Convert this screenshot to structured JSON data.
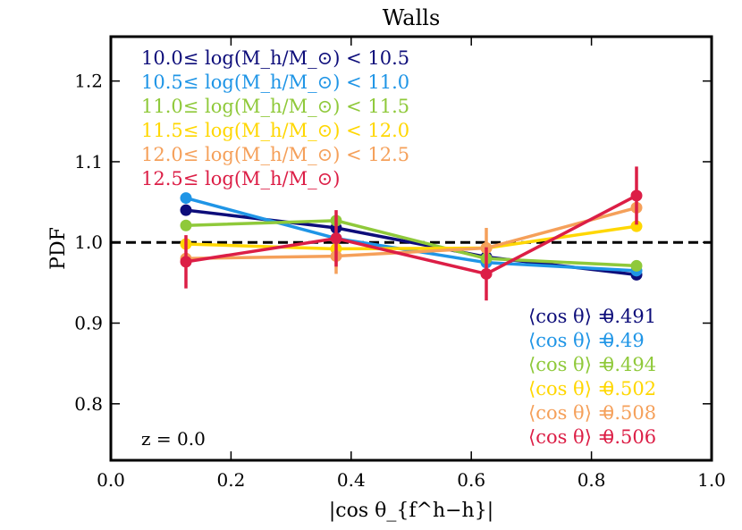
{
  "chart_data": {
    "type": "line",
    "title": "Walls",
    "xlabel": "|cos θ_{f^h−h}|",
    "ylabel": "PDF",
    "xlim": [
      0.0,
      1.0
    ],
    "ylim": [
      0.73,
      1.255
    ],
    "xticks": [
      "0.0",
      "0.2",
      "0.4",
      "0.6",
      "0.8",
      "1.0"
    ],
    "yticks": [
      "0.8",
      "0.9",
      "1.0",
      "1.1",
      "1.2"
    ],
    "x": [
      0.125,
      0.375,
      0.625,
      0.875
    ],
    "reference_line": {
      "y": 1.0,
      "style": "dashed",
      "color": "#000000"
    },
    "series": [
      {
        "name": "10.0≤ log(M_h/M_⊙) < 10.5",
        "color": "#0d0d7a",
        "values": [
          1.04,
          1.018,
          0.982,
          0.96
        ],
        "err": [
          0,
          0,
          0,
          0
        ],
        "mean_cos": "0.491"
      },
      {
        "name": "10.5≤ log(M_h/M_⊙) < 11.0",
        "color": "#1f95e6",
        "values": [
          1.055,
          1.005,
          0.975,
          0.965
        ],
        "err": [
          0,
          0,
          0,
          0
        ],
        "mean_cos": "0.49"
      },
      {
        "name": "11.0≤ log(M_h/M_⊙) < 11.5",
        "color": "#8fc93a",
        "values": [
          1.021,
          1.027,
          0.98,
          0.971
        ],
        "err": [
          0,
          0,
          0,
          0.006
        ],
        "mean_cos": "0.494"
      },
      {
        "name": "11.5≤ log(M_h/M_⊙) < 12.0",
        "color": "#ffd700",
        "values": [
          0.998,
          0.992,
          0.993,
          1.02
        ],
        "err": [
          0,
          0,
          0,
          0
        ],
        "mean_cos": "0.502"
      },
      {
        "name": "12.0≤ log(M_h/M_⊙) < 12.5",
        "color": "#f5a05a",
        "values": [
          0.98,
          0.983,
          0.993,
          1.043
        ],
        "err": [
          0,
          0.022,
          0.025,
          0
        ],
        "mean_cos": "0.508"
      },
      {
        "name": "12.5≤ log(M_h/M_⊙)",
        "color": "#dc1e46",
        "values": [
          0.976,
          1.005,
          0.961,
          1.058
        ],
        "err": [
          0.033,
          0.035,
          0.033,
          0.036
        ],
        "mean_cos": "0.506"
      }
    ],
    "annotation": "z = 0.0",
    "mean_label_prefix": "⟨cos θ⟩ ="
  }
}
